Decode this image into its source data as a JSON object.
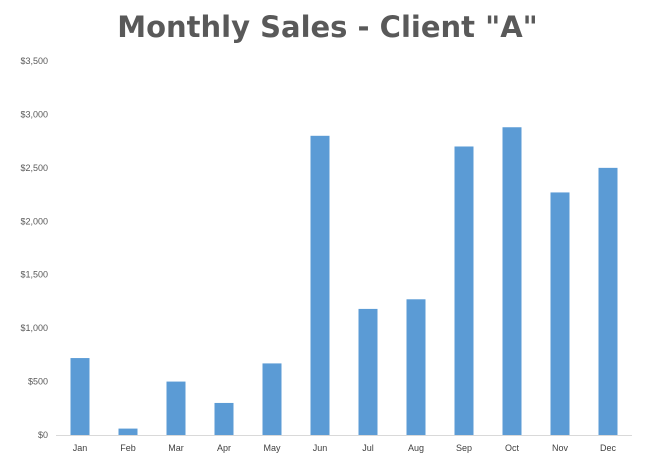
{
  "chart_data": {
    "type": "bar",
    "title": "Monthly Sales - Client \"A\"",
    "xlabel": "",
    "ylabel": "",
    "categories": [
      "Jan",
      "Feb",
      "Mar",
      "Apr",
      "May",
      "Jun",
      "Jul",
      "Aug",
      "Sep",
      "Oct",
      "Nov",
      "Dec"
    ],
    "values": [
      720,
      60,
      500,
      300,
      670,
      2800,
      1180,
      1270,
      2700,
      2880,
      2270,
      2500
    ],
    "ylim": [
      0,
      3500
    ],
    "ytick_values": [
      0,
      500,
      1000,
      1500,
      2000,
      2500,
      3000,
      3500
    ],
    "ytick_labels": [
      "$0",
      "$500",
      "$1,000",
      "$1,500",
      "$2,000",
      "$2,500",
      "$3,000",
      "$3,500"
    ],
    "grid": false,
    "legend": "none",
    "bar_color": "#5B9BD5",
    "axis_color": "#D9D9D9"
  }
}
